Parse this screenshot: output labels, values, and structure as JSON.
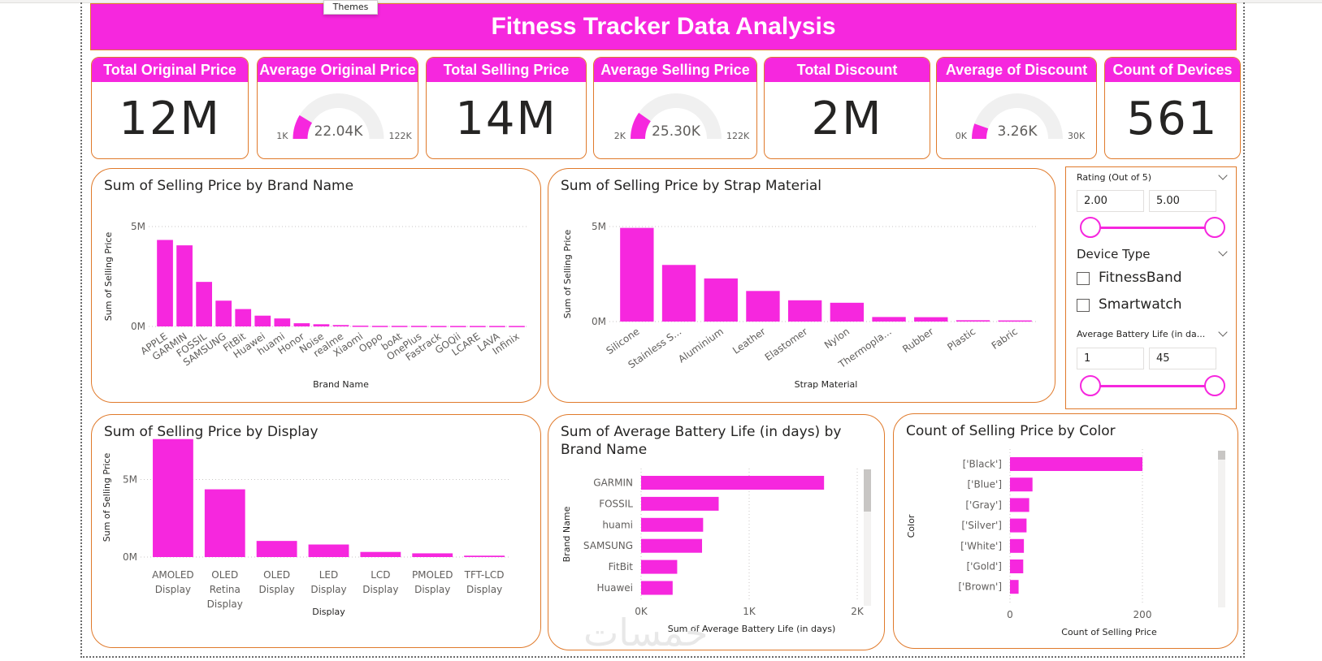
{
  "ribbon": {
    "tooltip": "Themes"
  },
  "banner": {
    "title": "Fitness Tracker Data Analysis"
  },
  "colors": {
    "accent": "#f627de",
    "border": "#e07a2b",
    "gauge_track": "#f0f0f0"
  },
  "kpis": [
    {
      "label": "Total Original Price",
      "value": "12M",
      "type": "card"
    },
    {
      "label": "Average Original Price",
      "value": "22.04K",
      "type": "gauge",
      "min_label": "1K",
      "max_label": "122K",
      "min": 1,
      "max": 122,
      "current": 22.04
    },
    {
      "label": "Total Selling Price",
      "value": "14M",
      "type": "card"
    },
    {
      "label": "Average Selling Price",
      "value": "25.30K",
      "type": "gauge",
      "min_label": "2K",
      "max_label": "122K",
      "min": 2,
      "max": 122,
      "current": 25.3
    },
    {
      "label": "Total Discount",
      "value": "2M",
      "type": "card"
    },
    {
      "label": "Average of Discount",
      "value": "3.26K",
      "type": "gauge",
      "min_label": "0K",
      "max_label": "30K",
      "min": 0,
      "max": 30,
      "current": 3.26
    },
    {
      "label": "Count of Devices",
      "value": "561",
      "type": "card"
    }
  ],
  "slicers": {
    "rating": {
      "label": "Rating (Out of 5)",
      "min_value": "2.00",
      "max_value": "5.00"
    },
    "device_type": {
      "label": "Device Type",
      "options": [
        "FitnessBand",
        "Smartwatch"
      ]
    },
    "battery": {
      "label": "Average Battery Life (in da...",
      "min_value": "1",
      "max_value": "45"
    }
  },
  "watermark": "خمسات",
  "chart_data": [
    {
      "id": "brand",
      "type": "bar",
      "title": "Sum of Selling Price by Brand Name",
      "xlabel": "Brand Name",
      "ylabel": "Sum of Selling Price",
      "ylim": [
        0,
        5000000
      ],
      "yticks": [
        {
          "v": 0,
          "label": "0M"
        },
        {
          "v": 5000000,
          "label": "5M"
        }
      ],
      "grid": true,
      "categories": [
        "APPLE",
        "GARMIN",
        "FOSSIL",
        "SAMSUNG",
        "FitBit",
        "Huawei",
        "huami",
        "Honor",
        "Noise",
        "realme",
        "Xiaomi",
        "Oppo",
        "boAt",
        "OnePlus",
        "Fastrack",
        "GOQii",
        "LCARE",
        "LAVA",
        "Infinix"
      ],
      "values": [
        4330000,
        4060000,
        2230000,
        1290000,
        870000,
        540000,
        400000,
        160000,
        110000,
        70000,
        40000,
        30000,
        30000,
        30000,
        25000,
        25000,
        25000,
        25000,
        25000
      ]
    },
    {
      "id": "strap",
      "type": "bar",
      "title": "Sum of Selling Price by Strap Material",
      "xlabel": "Strap Material",
      "ylabel": "Sum of Selling Price",
      "ylim": [
        0,
        5000000
      ],
      "yticks": [
        {
          "v": 0,
          "label": "0M"
        },
        {
          "v": 5000000,
          "label": "5M"
        }
      ],
      "grid": true,
      "categories": [
        "Silicone",
        "Stainless S...",
        "Aluminium",
        "Leather",
        "Elastomer",
        "Nylon",
        "Thermopla...",
        "Rubber",
        "Plastic",
        "Fabric"
      ],
      "values": [
        4930000,
        2980000,
        2270000,
        1610000,
        1120000,
        990000,
        240000,
        230000,
        70000,
        60000
      ]
    },
    {
      "id": "display",
      "type": "bar",
      "title": "Sum of Selling Price by Display",
      "xlabel": "Display",
      "ylabel": "Sum of Selling Price",
      "ylim": [
        0,
        7700000
      ],
      "yticks": [
        {
          "v": 0,
          "label": "0M"
        },
        {
          "v": 5000000,
          "label": "5M"
        }
      ],
      "grid": true,
      "categories": [
        [
          "AMOLED",
          "Display"
        ],
        [
          "OLED",
          "Retina",
          "Display"
        ],
        [
          "OLED",
          "Display"
        ],
        [
          "LED",
          "Display"
        ],
        [
          "LCD",
          "Display"
        ],
        [
          "PMOLED",
          "Display"
        ],
        [
          "TFT-LCD",
          "Display"
        ]
      ],
      "values": [
        7610000,
        4370000,
        1040000,
        810000,
        330000,
        240000,
        90000
      ]
    },
    {
      "id": "battery",
      "type": "bar",
      "orientation": "horizontal",
      "title": "Sum of Average Battery Life (in days) by Brand Name",
      "title_lines": [
        "Sum of Average Battery Life (in days) by",
        "Brand Name"
      ],
      "xlabel": "Sum of Average Battery Life (in days)",
      "ylabel": "Brand Name",
      "xlim": [
        0,
        2000
      ],
      "xticks": [
        {
          "v": 0,
          "label": "0K"
        },
        {
          "v": 1000,
          "label": "1K"
        },
        {
          "v": 2000,
          "label": "2K"
        }
      ],
      "grid": true,
      "categories": [
        "GARMIN",
        "FOSSIL",
        "huami",
        "SAMSUNG",
        "FitBit",
        "Huawei"
      ],
      "values": [
        1693,
        718,
        574,
        564,
        334,
        292
      ]
    },
    {
      "id": "color",
      "type": "bar",
      "orientation": "horizontal",
      "title": "Count of Selling Price by Color",
      "xlabel": "Count of Selling Price",
      "ylabel": "Color",
      "xlim": [
        0,
        200
      ],
      "xticks": [
        {
          "v": 0,
          "label": "0"
        },
        {
          "v": 200,
          "label": "200"
        }
      ],
      "grid": true,
      "categories": [
        "['Black']",
        "['Blue']",
        "['Gray']",
        "['Silver']",
        "['White']",
        "['Gold']",
        "['Brown']"
      ],
      "values": [
        200,
        34,
        29,
        25,
        21,
        20,
        13
      ]
    }
  ]
}
